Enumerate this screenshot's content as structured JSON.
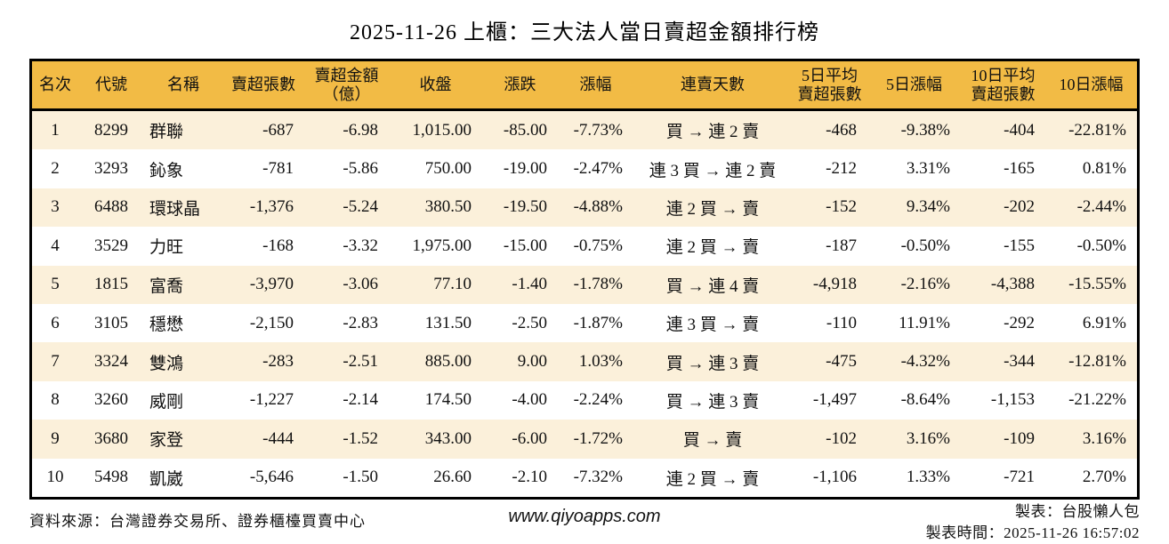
{
  "title": "2025-11-26 上櫃：三大法人當日賣超金額排行榜",
  "colors": {
    "positive_red": "#e30613",
    "negative_green": "#1e7e1e",
    "header_bg": "#f2bb45",
    "row_stripe": "#fbf0da",
    "border": "#000000"
  },
  "table": {
    "columns": [
      {
        "key": "rank",
        "label": "名次",
        "align": "c"
      },
      {
        "key": "code",
        "label": "代號",
        "align": "c"
      },
      {
        "key": "name",
        "label": "名稱",
        "align": "l"
      },
      {
        "key": "sell_volume",
        "label": "賣超張數",
        "align": "r"
      },
      {
        "key": "sell_amount",
        "label": "賣超金額\n（億）",
        "align": "r"
      },
      {
        "key": "close",
        "label": "收盤",
        "align": "r"
      },
      {
        "key": "change",
        "label": "漲跌",
        "align": "r"
      },
      {
        "key": "change_pct",
        "label": "漲幅",
        "align": "r"
      },
      {
        "key": "streak",
        "label": "連賣天數",
        "align": "c"
      },
      {
        "key": "avg5",
        "label": "5日平均\n賣超張數",
        "align": "r"
      },
      {
        "key": "pct5",
        "label": "5日漲幅",
        "align": "r"
      },
      {
        "key": "avg10",
        "label": "10日平均\n賣超張數",
        "align": "r"
      },
      {
        "key": "pct10",
        "label": "10日漲幅",
        "align": "r"
      }
    ],
    "rows": [
      {
        "rank": "1",
        "code": "8299",
        "name": "群聯",
        "sell_volume": "-687",
        "sell_amount": "-6.98",
        "close": "1,015.00",
        "change": "-85.00",
        "change_tone": "down",
        "change_pct": "-7.73%",
        "change_pct_tone": "down",
        "streak": "買 → 連 2 賣",
        "avg5": "-468",
        "pct5": "-9.38%",
        "pct5_tone": "down",
        "avg10": "-404",
        "pct10": "-22.81%",
        "pct10_tone": "down"
      },
      {
        "rank": "2",
        "code": "3293",
        "name": "鈊象",
        "sell_volume": "-781",
        "sell_amount": "-5.86",
        "close": "750.00",
        "change": "-19.00",
        "change_tone": "down",
        "change_pct": "-2.47%",
        "change_pct_tone": "down",
        "streak": "連 3 買 → 連 2 賣",
        "avg5": "-212",
        "pct5": "3.31%",
        "pct5_tone": "up",
        "avg10": "-165",
        "pct10": "0.81%",
        "pct10_tone": "up"
      },
      {
        "rank": "3",
        "code": "6488",
        "name": "環球晶",
        "sell_volume": "-1,376",
        "sell_amount": "-5.24",
        "close": "380.50",
        "change": "-19.50",
        "change_tone": "down",
        "change_pct": "-4.88%",
        "change_pct_tone": "down",
        "streak": "連 2 買 → 賣",
        "avg5": "-152",
        "pct5": "9.34%",
        "pct5_tone": "up",
        "avg10": "-202",
        "pct10": "-2.44%",
        "pct10_tone": "down"
      },
      {
        "rank": "4",
        "code": "3529",
        "name": "力旺",
        "sell_volume": "-168",
        "sell_amount": "-3.32",
        "close": "1,975.00",
        "change": "-15.00",
        "change_tone": "down",
        "change_pct": "-0.75%",
        "change_pct_tone": "down",
        "streak": "連 2 買 → 賣",
        "avg5": "-187",
        "pct5": "-0.50%",
        "pct5_tone": "down",
        "avg10": "-155",
        "pct10": "-0.50%",
        "pct10_tone": "down"
      },
      {
        "rank": "5",
        "code": "1815",
        "name": "富喬",
        "sell_volume": "-3,970",
        "sell_amount": "-3.06",
        "close": "77.10",
        "change": "-1.40",
        "change_tone": "down",
        "change_pct": "-1.78%",
        "change_pct_tone": "down",
        "streak": "買 → 連 4 賣",
        "avg5": "-4,918",
        "pct5": "-2.16%",
        "pct5_tone": "down",
        "avg10": "-4,388",
        "pct10": "-15.55%",
        "pct10_tone": "down"
      },
      {
        "rank": "6",
        "code": "3105",
        "name": "穩懋",
        "sell_volume": "-2,150",
        "sell_amount": "-2.83",
        "close": "131.50",
        "change": "-2.50",
        "change_tone": "down",
        "change_pct": "-1.87%",
        "change_pct_tone": "down",
        "streak": "連 3 買 → 賣",
        "avg5": "-110",
        "pct5": "11.91%",
        "pct5_tone": "up",
        "avg10": "-292",
        "pct10": "6.91%",
        "pct10_tone": "up"
      },
      {
        "rank": "7",
        "code": "3324",
        "name": "雙鴻",
        "sell_volume": "-283",
        "sell_amount": "-2.51",
        "close": "885.00",
        "change": "9.00",
        "change_tone": "up",
        "change_pct": "1.03%",
        "change_pct_tone": "up",
        "streak": "買 → 連 3 賣",
        "avg5": "-475",
        "pct5": "-4.32%",
        "pct5_tone": "down",
        "avg10": "-344",
        "pct10": "-12.81%",
        "pct10_tone": "down"
      },
      {
        "rank": "8",
        "code": "3260",
        "name": "威剛",
        "sell_volume": "-1,227",
        "sell_amount": "-2.14",
        "close": "174.50",
        "change": "-4.00",
        "change_tone": "down",
        "change_pct": "-2.24%",
        "change_pct_tone": "down",
        "streak": "買 → 連 3 賣",
        "avg5": "-1,497",
        "pct5": "-8.64%",
        "pct5_tone": "down",
        "avg10": "-1,153",
        "pct10": "-21.22%",
        "pct10_tone": "down"
      },
      {
        "rank": "9",
        "code": "3680",
        "name": "家登",
        "sell_volume": "-444",
        "sell_amount": "-1.52",
        "close": "343.00",
        "change": "-6.00",
        "change_tone": "down",
        "change_pct": "-1.72%",
        "change_pct_tone": "down",
        "streak": "買 → 賣",
        "avg5": "-102",
        "pct5": "3.16%",
        "pct5_tone": "up",
        "avg10": "-109",
        "pct10": "3.16%",
        "pct10_tone": "up"
      },
      {
        "rank": "10",
        "code": "5498",
        "name": "凱崴",
        "sell_volume": "-5,646",
        "sell_amount": "-1.50",
        "close": "26.60",
        "change": "-2.10",
        "change_tone": "down",
        "change_pct": "-7.32%",
        "change_pct_tone": "down",
        "streak": "連 2 買 → 賣",
        "avg5": "-1,106",
        "pct5": "1.33%",
        "pct5_tone": "up",
        "avg10": "-721",
        "pct10": "2.70%",
        "pct10_tone": "up"
      }
    ]
  },
  "footer": {
    "source": "資料來源：台灣證券交易所、證券櫃檯買賣中心",
    "website": "www.qiyoapps.com",
    "author": "製表：台股懶人包",
    "timestamp": "製表時間：2025-11-26 16:57:02"
  }
}
